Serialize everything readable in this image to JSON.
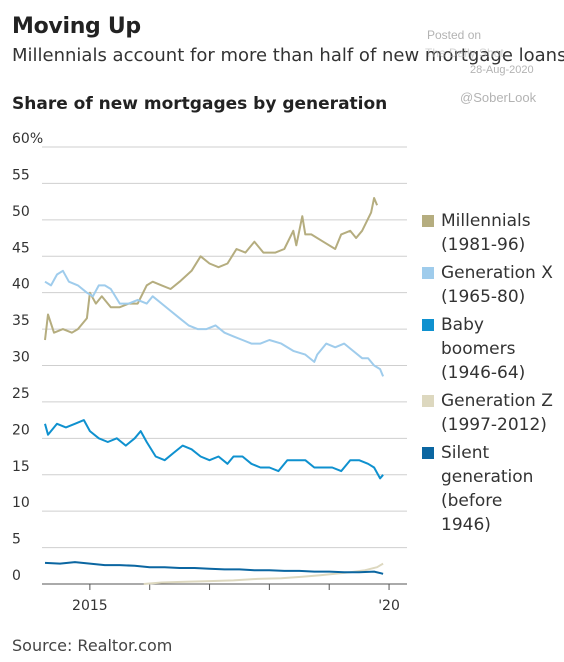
{
  "header": {
    "title": "Moving Up",
    "subtitle": "Millennials account for more than half of new mortgage loans."
  },
  "watermark": {
    "posted": "Posted on",
    "site": "The Daily Shot",
    "date": "28-Aug-2020",
    "handle": "@SoberLook"
  },
  "footer": {
    "source": "Source: Realtor.com"
  },
  "chart_data": {
    "type": "line",
    "title": "Share of new mortgages by generation",
    "x_ticks": [
      {
        "label": "2015",
        "year": 2015.0
      },
      {
        "label": "'20",
        "year": 2020.0
      }
    ],
    "year_ticks": [
      2015,
      2016,
      2017,
      2018,
      2019,
      2020
    ],
    "xlim": [
      2014.2,
      2020.3
    ],
    "ylim": [
      0,
      60
    ],
    "y_ticks": [
      0,
      5,
      10,
      15,
      20,
      25,
      30,
      35,
      40,
      45,
      50,
      55,
      60
    ],
    "y_top_label": "60%",
    "grid": true,
    "legend_position": "right",
    "series": [
      {
        "name": "Millennials (1981-96)",
        "label_lines": [
          "Millennials",
          "(1981-96)"
        ],
        "color": "#b5ad7f",
        "points": [
          [
            2014.25,
            33.5
          ],
          [
            2014.3,
            37
          ],
          [
            2014.4,
            34.5
          ],
          [
            2014.55,
            35
          ],
          [
            2014.7,
            34.5
          ],
          [
            2014.8,
            35
          ],
          [
            2014.95,
            36.5
          ],
          [
            2015.0,
            40
          ],
          [
            2015.1,
            38.5
          ],
          [
            2015.2,
            39.5
          ],
          [
            2015.35,
            38
          ],
          [
            2015.5,
            38
          ],
          [
            2015.65,
            38.5
          ],
          [
            2015.8,
            38.5
          ],
          [
            2015.95,
            41
          ],
          [
            2016.05,
            41.5
          ],
          [
            2016.2,
            41
          ],
          [
            2016.35,
            40.5
          ],
          [
            2016.5,
            41.5
          ],
          [
            2016.7,
            43
          ],
          [
            2016.85,
            45
          ],
          [
            2017.0,
            44
          ],
          [
            2017.15,
            43.5
          ],
          [
            2017.3,
            44
          ],
          [
            2017.45,
            46
          ],
          [
            2017.6,
            45.5
          ],
          [
            2017.75,
            47
          ],
          [
            2017.9,
            45.5
          ],
          [
            2018.1,
            45.5
          ],
          [
            2018.25,
            46
          ],
          [
            2018.4,
            48.5
          ],
          [
            2018.45,
            46.5
          ],
          [
            2018.55,
            50.5
          ],
          [
            2018.6,
            48
          ],
          [
            2018.7,
            48
          ],
          [
            2018.9,
            47
          ],
          [
            2019.1,
            46
          ],
          [
            2019.2,
            48
          ],
          [
            2019.35,
            48.5
          ],
          [
            2019.45,
            47.5
          ],
          [
            2019.55,
            48.5
          ],
          [
            2019.7,
            51
          ],
          [
            2019.75,
            53
          ],
          [
            2019.8,
            52
          ]
        ]
      },
      {
        "name": "Generation X (1965-80)",
        "label_lines": [
          "Generation X",
          "(1965-80)"
        ],
        "color": "#9fccec",
        "points": [
          [
            2014.25,
            41.5
          ],
          [
            2014.35,
            41
          ],
          [
            2014.45,
            42.5
          ],
          [
            2014.55,
            43
          ],
          [
            2014.65,
            41.5
          ],
          [
            2014.8,
            41
          ],
          [
            2014.95,
            40
          ],
          [
            2015.05,
            39.5
          ],
          [
            2015.15,
            41
          ],
          [
            2015.25,
            41
          ],
          [
            2015.35,
            40.5
          ],
          [
            2015.5,
            38.5
          ],
          [
            2015.65,
            38.5
          ],
          [
            2015.8,
            39
          ],
          [
            2015.95,
            38.5
          ],
          [
            2016.05,
            39.5
          ],
          [
            2016.2,
            38.5
          ],
          [
            2016.35,
            37.5
          ],
          [
            2016.5,
            36.5
          ],
          [
            2016.65,
            35.5
          ],
          [
            2016.8,
            35
          ],
          [
            2016.95,
            35
          ],
          [
            2017.1,
            35.5
          ],
          [
            2017.25,
            34.5
          ],
          [
            2017.4,
            34
          ],
          [
            2017.55,
            33.5
          ],
          [
            2017.7,
            33
          ],
          [
            2017.85,
            33
          ],
          [
            2018.0,
            33.5
          ],
          [
            2018.2,
            33
          ],
          [
            2018.4,
            32
          ],
          [
            2018.6,
            31.5
          ],
          [
            2018.75,
            30.5
          ],
          [
            2018.8,
            31.5
          ],
          [
            2018.95,
            33
          ],
          [
            2019.1,
            32.5
          ],
          [
            2019.25,
            33
          ],
          [
            2019.4,
            32
          ],
          [
            2019.55,
            31
          ],
          [
            2019.65,
            31
          ],
          [
            2019.75,
            30
          ],
          [
            2019.85,
            29.5
          ],
          [
            2019.9,
            28.5
          ]
        ]
      },
      {
        "name": "Baby boomers (1946-64)",
        "label_lines": [
          "Baby",
          "boomers",
          "(1946-64)"
        ],
        "color": "#0f91cf",
        "points": [
          [
            2014.25,
            22
          ],
          [
            2014.3,
            20.5
          ],
          [
            2014.45,
            22
          ],
          [
            2014.6,
            21.5
          ],
          [
            2014.75,
            22
          ],
          [
            2014.9,
            22.5
          ],
          [
            2015.0,
            21
          ],
          [
            2015.15,
            20
          ],
          [
            2015.3,
            19.5
          ],
          [
            2015.45,
            20
          ],
          [
            2015.6,
            19
          ],
          [
            2015.75,
            20
          ],
          [
            2015.85,
            21
          ],
          [
            2015.95,
            19.5
          ],
          [
            2016.1,
            17.5
          ],
          [
            2016.25,
            17
          ],
          [
            2016.4,
            18
          ],
          [
            2016.55,
            19
          ],
          [
            2016.7,
            18.5
          ],
          [
            2016.85,
            17.5
          ],
          [
            2017.0,
            17
          ],
          [
            2017.15,
            17.5
          ],
          [
            2017.3,
            16.5
          ],
          [
            2017.4,
            17.5
          ],
          [
            2017.55,
            17.5
          ],
          [
            2017.7,
            16.5
          ],
          [
            2017.85,
            16
          ],
          [
            2018.0,
            16
          ],
          [
            2018.15,
            15.5
          ],
          [
            2018.3,
            17
          ],
          [
            2018.45,
            17
          ],
          [
            2018.6,
            17
          ],
          [
            2018.75,
            16
          ],
          [
            2018.9,
            16
          ],
          [
            2019.05,
            16
          ],
          [
            2019.2,
            15.5
          ],
          [
            2019.35,
            17
          ],
          [
            2019.5,
            17
          ],
          [
            2019.65,
            16.5
          ],
          [
            2019.75,
            16
          ],
          [
            2019.85,
            14.5
          ],
          [
            2019.9,
            15
          ]
        ]
      },
      {
        "name": "Generation Z (1997-2012)",
        "label_lines": [
          "Generation Z",
          "(1997-2012)"
        ],
        "color": "#ddd8bf",
        "points": [
          [
            2015.9,
            0
          ],
          [
            2016.2,
            0.2
          ],
          [
            2016.6,
            0.3
          ],
          [
            2017.0,
            0.4
          ],
          [
            2017.4,
            0.5
          ],
          [
            2017.8,
            0.7
          ],
          [
            2018.2,
            0.8
          ],
          [
            2018.55,
            1.0
          ],
          [
            2018.85,
            1.2
          ],
          [
            2019.1,
            1.4
          ],
          [
            2019.35,
            1.6
          ],
          [
            2019.6,
            1.9
          ],
          [
            2019.8,
            2.3
          ],
          [
            2019.9,
            2.8
          ]
        ]
      },
      {
        "name": "Silent generation (before 1946)",
        "label_lines": [
          "Silent",
          "generation",
          "(before",
          "1946)"
        ],
        "color": "#0b66a1",
        "points": [
          [
            2014.25,
            2.9
          ],
          [
            2014.5,
            2.8
          ],
          [
            2014.75,
            3.0
          ],
          [
            2015.0,
            2.8
          ],
          [
            2015.25,
            2.6
          ],
          [
            2015.5,
            2.6
          ],
          [
            2015.75,
            2.5
          ],
          [
            2016.0,
            2.3
          ],
          [
            2016.25,
            2.3
          ],
          [
            2016.5,
            2.2
          ],
          [
            2016.75,
            2.2
          ],
          [
            2017.0,
            2.1
          ],
          [
            2017.25,
            2.0
          ],
          [
            2017.5,
            2.0
          ],
          [
            2017.75,
            1.9
          ],
          [
            2018.0,
            1.9
          ],
          [
            2018.25,
            1.8
          ],
          [
            2018.5,
            1.8
          ],
          [
            2018.75,
            1.7
          ],
          [
            2019.0,
            1.7
          ],
          [
            2019.25,
            1.6
          ],
          [
            2019.5,
            1.6
          ],
          [
            2019.75,
            1.7
          ],
          [
            2019.9,
            1.4
          ]
        ]
      }
    ]
  }
}
